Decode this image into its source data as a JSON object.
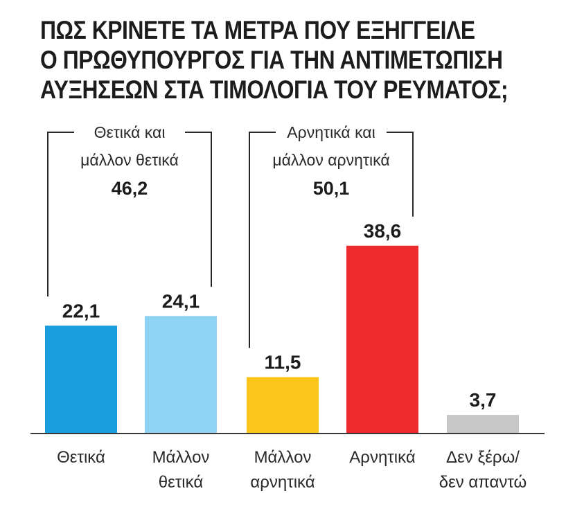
{
  "title_lines": [
    "ΠΩΣ ΚΡΙΝΕΤΕ ΤΑ ΜΕΤΡΑ ΠΟΥ ΕΞΗΓΓΕΙΛΕ",
    "Ο ΠΡΩΘΥΠΟΥΡΓΟΣ ΓΙΑ ΤΗΝ ΑΝΤΙΜΕΤΩΠΙΣΗ",
    "ΑΥΞΗΣΕΩΝ ΣΤΑ ΤΙΜΟΛΟΓΙΑ ΤΟΥ ΡΕΥΜΑΤΟΣ;"
  ],
  "chart_data": {
    "type": "bar",
    "title": "ΠΩΣ ΚΡΙΝΕΤΕ ΤΑ ΜΕΤΡΑ ΠΟΥ ΕΞΗΓΓΕΙΛΕ Ο ΠΡΩΘΥΠΟΥΡΓΟΣ ΓΙΑ ΤΗΝ ΑΝΤΙΜΕΤΩΠΙΣΗ ΑΥΞΗΣΕΩΝ ΣΤΑ ΤΙΜΟΛΟΓΙΑ ΤΟΥ ΡΕΥΜΑΤΟΣ;",
    "categories": [
      [
        "Θετικά"
      ],
      [
        "Μάλλον",
        "θετικά"
      ],
      [
        "Μάλλον",
        "αρνητικά"
      ],
      [
        "Αρνητικά"
      ],
      [
        "Δεν ξέρω/",
        "δεν απαντώ"
      ]
    ],
    "values": [
      22.1,
      24.1,
      11.5,
      38.6,
      3.7
    ],
    "value_labels": [
      "22,1",
      "24,1",
      "11,5",
      "38,6",
      "3,7"
    ],
    "colors": [
      "#1a9ee0",
      "#8fd3f4",
      "#fcc51c",
      "#ee2a2f",
      "#c7c7c7"
    ],
    "groups": [
      {
        "label_lines": [
          "Θετικά και",
          "μάλλον θετικά"
        ],
        "total": 46.2,
        "total_label": "46,2",
        "from": 0,
        "to": 1
      },
      {
        "label_lines": [
          "Αρνητικά και",
          "μάλλον αρνητικά"
        ],
        "total": 50.1,
        "total_label": "50,1",
        "from": 2,
        "to": 3
      }
    ],
    "xlabel": "",
    "ylabel": "",
    "ylim": [
      0,
      45
    ],
    "grid": false,
    "legend": "none"
  }
}
